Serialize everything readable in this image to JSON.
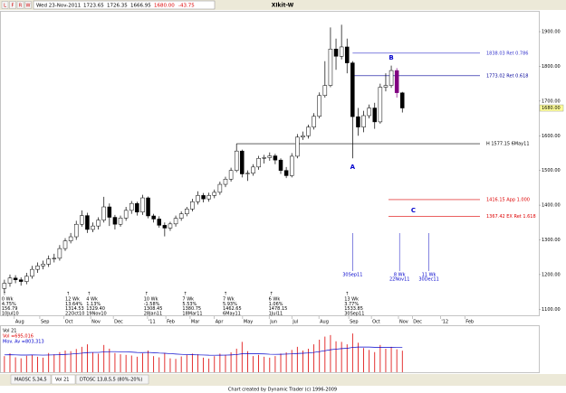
{
  "toolbar": {
    "buttons": [
      "L",
      "F",
      "R",
      "W"
    ],
    "date": "Wed 23-Nov-2011",
    "open": "1723.65",
    "high": "1726.35",
    "low": "1666.95",
    "close": "1680.00",
    "change": "-43.75"
  },
  "chart_data": {
    "type": "candlestick",
    "title": "XIkit-W",
    "candles": [
      [
        1160,
        1185,
        1150,
        1175
      ],
      [
        1175,
        1200,
        1165,
        1190
      ],
      [
        1190,
        1198,
        1175,
        1185
      ],
      [
        1185,
        1192,
        1168,
        1180
      ],
      [
        1180,
        1205,
        1172,
        1195
      ],
      [
        1195,
        1225,
        1188,
        1215
      ],
      [
        1215,
        1235,
        1205,
        1225
      ],
      [
        1225,
        1240,
        1215,
        1230
      ],
      [
        1230,
        1255,
        1222,
        1245
      ],
      [
        1245,
        1260,
        1235,
        1247
      ],
      [
        1247,
        1285,
        1240,
        1275
      ],
      [
        1275,
        1305,
        1268,
        1297
      ],
      [
        1297,
        1320,
        1290,
        1309
      ],
      [
        1309,
        1355,
        1300,
        1345
      ],
      [
        1345,
        1385,
        1338,
        1370
      ],
      [
        1370,
        1378,
        1320,
        1330
      ],
      [
        1330,
        1350,
        1322,
        1340
      ],
      [
        1340,
        1365,
        1330,
        1357
      ],
      [
        1357,
        1424,
        1350,
        1395
      ],
      [
        1395,
        1405,
        1340,
        1365
      ],
      [
        1365,
        1372,
        1330,
        1345
      ],
      [
        1345,
        1370,
        1338,
        1363
      ],
      [
        1363,
        1395,
        1355,
        1385
      ],
      [
        1385,
        1412,
        1375,
        1405
      ],
      [
        1405,
        1410,
        1370,
        1380
      ],
      [
        1380,
        1430,
        1372,
        1421
      ],
      [
        1421,
        1425,
        1362,
        1369
      ],
      [
        1369,
        1375,
        1350,
        1360
      ],
      [
        1360,
        1368,
        1335,
        1342
      ],
      [
        1342,
        1350,
        1310,
        1334
      ],
      [
        1334,
        1352,
        1326,
        1346
      ],
      [
        1346,
        1370,
        1338,
        1362
      ],
      [
        1362,
        1382,
        1355,
        1375
      ],
      [
        1375,
        1395,
        1368,
        1389
      ],
      [
        1389,
        1418,
        1382,
        1410
      ],
      [
        1410,
        1440,
        1402,
        1428
      ],
      [
        1428,
        1435,
        1408,
        1418
      ],
      [
        1418,
        1436,
        1410,
        1428
      ],
      [
        1428,
        1445,
        1420,
        1437
      ],
      [
        1437,
        1468,
        1430,
        1460
      ],
      [
        1460,
        1482,
        1452,
        1475
      ],
      [
        1475,
        1508,
        1468,
        1500
      ],
      [
        1500,
        1577,
        1495,
        1556
      ],
      [
        1556,
        1560,
        1480,
        1490
      ],
      [
        1490,
        1500,
        1470,
        1492
      ],
      [
        1492,
        1518,
        1485,
        1510
      ],
      [
        1510,
        1542,
        1502,
        1535
      ],
      [
        1535,
        1545,
        1520,
        1537
      ],
      [
        1537,
        1552,
        1528,
        1542
      ],
      [
        1542,
        1548,
        1518,
        1530
      ],
      [
        1530,
        1535,
        1490,
        1500
      ],
      [
        1500,
        1510,
        1478,
        1485
      ],
      [
        1485,
        1550,
        1480,
        1541
      ],
      [
        1541,
        1605,
        1535,
        1596
      ],
      [
        1596,
        1612,
        1588,
        1600
      ],
      [
        1600,
        1632,
        1592,
        1625
      ],
      [
        1625,
        1665,
        1618,
        1656
      ],
      [
        1656,
        1725,
        1650,
        1716
      ],
      [
        1716,
        1815,
        1710,
        1745
      ],
      [
        1745,
        1912,
        1740,
        1850
      ],
      [
        1850,
        1880,
        1790,
        1829
      ],
      [
        1829,
        1920,
        1820,
        1856
      ],
      [
        1856,
        1880,
        1780,
        1810
      ],
      [
        1810,
        1815,
        1535,
        1655
      ],
      [
        1655,
        1680,
        1600,
        1625
      ],
      [
        1625,
        1672,
        1610,
        1658
      ],
      [
        1658,
        1690,
        1650,
        1680
      ],
      [
        1680,
        1695,
        1620,
        1640
      ],
      [
        1640,
        1750,
        1635,
        1740
      ],
      [
        1740,
        1780,
        1728,
        1745
      ],
      [
        1745,
        1802,
        1738,
        1788
      ],
      [
        1788,
        1795,
        1710,
        1724
      ],
      [
        1723.65,
        1726.35,
        1666.95,
        1680.0
      ]
    ],
    "up_color": "#ffffff",
    "down_color": "#000000",
    "highlight": {
      "index": 71,
      "color": "#800080"
    },
    "ylim": [
      1080,
      1960
    ],
    "yticks": [
      {
        "value": 1900,
        "label": "1900.00"
      },
      {
        "value": 1800,
        "label": "1800.00"
      },
      {
        "value": 1700,
        "label": "1700.00"
      },
      {
        "value": 1600,
        "label": "1600.00"
      },
      {
        "value": 1500,
        "label": "1500.00"
      },
      {
        "value": 1400,
        "label": "1400.00"
      },
      {
        "value": 1300,
        "label": "1300.00"
      },
      {
        "value": 1200,
        "label": "1200.00"
      },
      {
        "value": 1100,
        "label": "1100.00"
      }
    ],
    "xlim": [
      -0.8,
      96.7
    ],
    "xticks": [
      {
        "value": 1.8,
        "label": "Aug"
      },
      {
        "value": 6.4,
        "label": "Sep"
      },
      {
        "value": 10.8,
        "label": "Oct"
      },
      {
        "value": 15.6,
        "label": "Nov"
      },
      {
        "value": 19.7,
        "label": "Dec"
      },
      {
        "value": 25.9,
        "label": "'11"
      },
      {
        "value": 29.2,
        "label": "Feb"
      },
      {
        "value": 33.6,
        "label": "Mar"
      },
      {
        "value": 38,
        "label": "Apr"
      },
      {
        "value": 43.1,
        "label": "May"
      },
      {
        "value": 47.9,
        "label": "Jun"
      },
      {
        "value": 52,
        "label": "Jul"
      },
      {
        "value": 56.9,
        "label": "Aug"
      },
      {
        "value": 62.3,
        "label": "Sep"
      },
      {
        "value": 66.4,
        "label": "Oct"
      },
      {
        "value": 71.3,
        "label": "Nov"
      },
      {
        "value": 73.8,
        "label": "Dec"
      },
      {
        "value": 78.9,
        "label": "'12"
      },
      {
        "value": 83.3,
        "label": "Feb"
      }
    ],
    "levels": [
      {
        "value": 1838.03,
        "label": "1838.03 Ret 0.786",
        "color": "#3333cc",
        "start": 63
      },
      {
        "value": 1773.02,
        "label": "1773.02 Ret 0.618",
        "color": "#000099",
        "start": 63
      },
      {
        "value": 1577.15,
        "label": "H 1577.15 6May11",
        "color": "#000000",
        "start": 42
      },
      {
        "value": 1416.15,
        "label": "1416.15 App 1.000",
        "color": "#dd0000",
        "start": 69.5
      },
      {
        "value": 1367.42,
        "label": "1367.42 EX Ret 1.618",
        "color": "#dd0000",
        "start": 69.5
      }
    ],
    "wave_labels": [
      {
        "text": "A",
        "week": 63,
        "value": 1510
      },
      {
        "text": "B",
        "week": 70,
        "value": 1825
      },
      {
        "text": "C",
        "week": 74,
        "value": 1385
      }
    ],
    "cycles": [
      {
        "week": 63,
        "lines": [
          "30Sep11"
        ]
      },
      {
        "week": 71.5,
        "lines": [
          "8 Wk",
          "22Nov11"
        ]
      },
      {
        "week": 76.8,
        "lines": [
          "11 Wk",
          "30Dec11"
        ]
      }
    ],
    "swings": [
      {
        "week": 0,
        "lines": [
          "0 Wk",
          "4.75%",
          "156.79",
          "10Jul10"
        ]
      },
      {
        "week": 11.5,
        "lines": [
          "12 Wk",
          "13.64%",
          "1314.53",
          "22Oct10"
        ]
      },
      {
        "week": 15.3,
        "lines": [
          "4 Wk",
          "1.13%",
          "1329.40",
          "19Nov10"
        ]
      },
      {
        "week": 25.7,
        "lines": [
          "10 Wk",
          "-1.58%",
          "1308.45",
          "28Jan11"
        ]
      },
      {
        "week": 32.7,
        "lines": [
          "7 Wk",
          "5.53%",
          "1380.75",
          "18Mar11"
        ]
      },
      {
        "week": 40,
        "lines": [
          "7 Wk",
          "5.93%",
          "1462.65",
          "6May11"
        ]
      },
      {
        "week": 48.3,
        "lines": [
          "6 Wk",
          "1.06%",
          "1478.15",
          "1Jul11"
        ]
      },
      {
        "week": 62,
        "lines": [
          "13 Wk",
          "3.77%",
          "1533.85",
          "30Sep11"
        ]
      }
    ]
  },
  "volume": {
    "title": "Vol 21",
    "vol_label": "Vol =695,016",
    "ma_label": "Mov. Av =803,313",
    "bar_color": "#dd0000",
    "ma_color": "#0000cc",
    "ylim": [
      0,
      1400000
    ],
    "values": [
      520000,
      610000,
      480000,
      450000,
      530000,
      560000,
      500000,
      470000,
      620000,
      580000,
      650000,
      700000,
      680000,
      750000,
      820000,
      900000,
      640000,
      600000,
      880000,
      760000,
      620000,
      580000,
      560000,
      540000,
      500000,
      610000,
      700000,
      520000,
      480000,
      620000,
      450000,
      430000,
      510000,
      560000,
      600000,
      580000,
      470000,
      440000,
      520000,
      600000,
      560000,
      640000,
      760000,
      980000,
      680000,
      520000,
      560000,
      500000,
      470000,
      520000,
      600000,
      640000,
      720000,
      820000,
      700000,
      760000,
      900000,
      1050000,
      1150000,
      1200000,
      1000000,
      980000,
      900000,
      1250000,
      950000,
      780000,
      720000,
      650000,
      880000,
      760000,
      820000,
      740000,
      695016
    ],
    "mov_av": [
      560000,
      565000,
      560000,
      555000,
      555000,
      558000,
      556000,
      552000,
      556000,
      560000,
      565000,
      575000,
      585000,
      600000,
      615000,
      635000,
      640000,
      640000,
      655000,
      665000,
      665000,
      662000,
      655000,
      648000,
      638000,
      635000,
      640000,
      630000,
      618000,
      612000,
      600000,
      588000,
      578000,
      570000,
      565000,
      560000,
      556000,
      550000,
      548000,
      550000,
      552000,
      558000,
      570000,
      595000,
      600000,
      598000,
      595000,
      590000,
      582000,
      578000,
      580000,
      585000,
      592000,
      605000,
      612000,
      622000,
      640000,
      665000,
      695000,
      725000,
      745000,
      762000,
      772000,
      800000,
      812000,
      815000,
      812000,
      805000,
      808000,
      805000,
      806000,
      804000,
      803313
    ]
  },
  "tabs": [
    "MAOSC 5,34,5",
    "Vol 21",
    "DTOSC 13,8,5,5 (80%-20%)"
  ],
  "footer": "Chart created by Dynamic Trader  (c)  1996-2009"
}
